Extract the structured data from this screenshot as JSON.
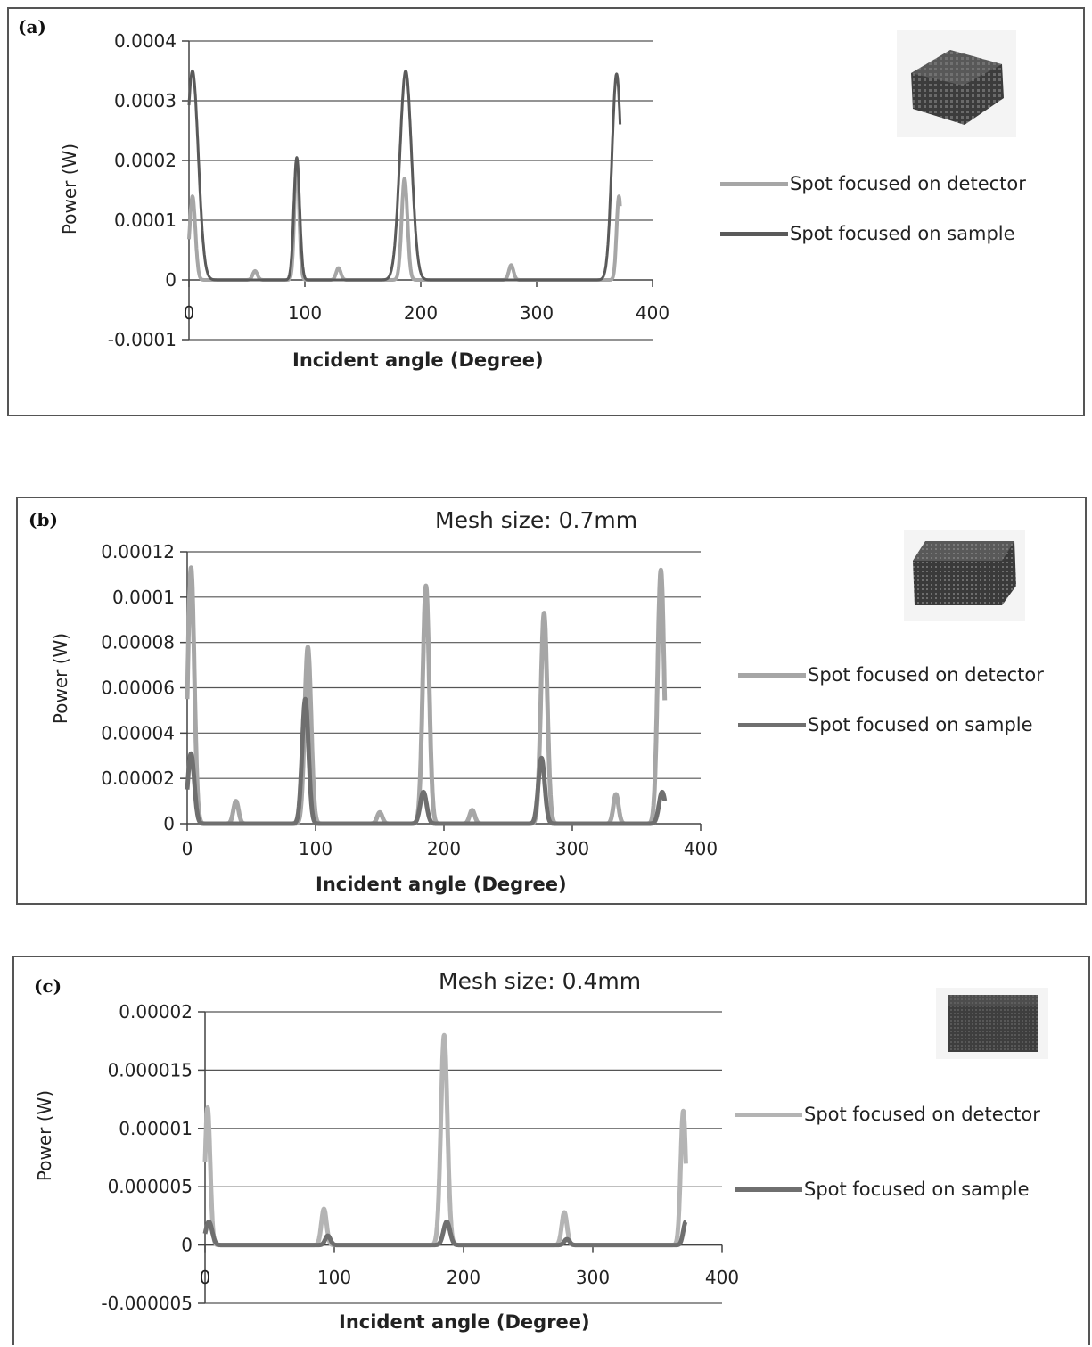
{
  "chart_data": [
    {
      "type": "line",
      "panel_label": "(a)",
      "title": "",
      "xlabel": "Incident angle (Degree)",
      "ylabel": "Power (W)",
      "xlim": [
        0,
        400
      ],
      "ylim": [
        -0.0001,
        0.0004
      ],
      "xticks": [
        "0",
        "100",
        "200",
        "300",
        "400"
      ],
      "yticks": [
        "-0.0001",
        "0",
        "0.0001",
        "0.0002",
        "0.0003",
        "0.0004"
      ],
      "grid": "horizontal",
      "legend_position": "right",
      "series": [
        {
          "name": "Spot focused on detector",
          "color": "#a6a6a6",
          "peaks": [
            {
              "x": 3,
              "y": 0.00014,
              "w": 2.5
            },
            {
              "x": 57,
              "y": 1.5e-05,
              "w": 2
            },
            {
              "x": 93,
              "y": 0.0002,
              "w": 2
            },
            {
              "x": 129,
              "y": 2e-05,
              "w": 2
            },
            {
              "x": 186,
              "y": 0.00017,
              "w": 2.5
            },
            {
              "x": 278,
              "y": 2.5e-05,
              "w": 2
            },
            {
              "x": 371,
              "y": 0.00014,
              "w": 2
            }
          ]
        },
        {
          "name": "Spot focused on sample",
          "color": "#5a5a5a",
          "peaks": [
            {
              "x": 3,
              "y": 0.00035,
              "w": 5
            },
            {
              "x": 93,
              "y": 0.000205,
              "w": 2.5
            },
            {
              "x": 187,
              "y": 0.00035,
              "w": 5
            },
            {
              "x": 369,
              "y": 0.000345,
              "w": 4
            }
          ]
        }
      ]
    },
    {
      "type": "line",
      "panel_label": "(b)",
      "title": "Mesh size: 0.7mm",
      "xlabel": "Incident angle (Degree)",
      "ylabel": "Power (W)",
      "xlim": [
        0,
        400
      ],
      "ylim": [
        0,
        0.00012
      ],
      "xticks": [
        "0",
        "100",
        "200",
        "300",
        "400"
      ],
      "yticks": [
        "0",
        "0.00002",
        "0.00004",
        "0.00006",
        "0.00008",
        "0.0001",
        "0.00012"
      ],
      "grid": "horizontal",
      "legend_position": "right",
      "series": [
        {
          "name": "Spot focused on detector",
          "color": "#a6a6a6",
          "peaks": [
            {
              "x": 3,
              "y": 0.000113,
              "w": 2.5
            },
            {
              "x": 38,
              "y": 1e-05,
              "w": 2
            },
            {
              "x": 94,
              "y": 7.8e-05,
              "w": 2.5
            },
            {
              "x": 150,
              "y": 5e-06,
              "w": 2
            },
            {
              "x": 186,
              "y": 0.000105,
              "w": 2.5
            },
            {
              "x": 222,
              "y": 6e-06,
              "w": 2
            },
            {
              "x": 278,
              "y": 9.3e-05,
              "w": 2.5
            },
            {
              "x": 334,
              "y": 1.3e-05,
              "w": 2
            },
            {
              "x": 369,
              "y": 0.000112,
              "w": 2.5
            }
          ]
        },
        {
          "name": "Spot focused on sample",
          "color": "#6f6f6f",
          "peaks": [
            {
              "x": 3,
              "y": 3.1e-05,
              "w": 2.5
            },
            {
              "x": 92,
              "y": 5.5e-05,
              "w": 2.5
            },
            {
              "x": 184,
              "y": 1.4e-05,
              "w": 2.5
            },
            {
              "x": 276,
              "y": 2.9e-05,
              "w": 2.5
            },
            {
              "x": 370,
              "y": 1.4e-05,
              "w": 2.5
            }
          ]
        }
      ]
    },
    {
      "type": "line",
      "panel_label": "(c)",
      "title": "Mesh size: 0.4mm",
      "xlabel": "Incident angle (Degree)",
      "ylabel": "Power (W)",
      "xlim": [
        0,
        400
      ],
      "ylim": [
        -5e-06,
        2e-05
      ],
      "xticks": [
        "0",
        "100",
        "200",
        "300",
        "400"
      ],
      "yticks": [
        "-0.000005",
        "0",
        "0.000005",
        "0.00001",
        "0.000015",
        "0.00002"
      ],
      "grid": "horizontal",
      "legend_position": "right",
      "series": [
        {
          "name": "Spot focused on detector",
          "color": "#b4b4b4",
          "peaks": [
            {
              "x": 2,
              "y": 1.18e-05,
              "w": 2
            },
            {
              "x": 92,
              "y": 3.1e-06,
              "w": 2
            },
            {
              "x": 185,
              "y": 1.8e-05,
              "w": 2.5
            },
            {
              "x": 278,
              "y": 2.8e-06,
              "w": 2
            },
            {
              "x": 370,
              "y": 1.15e-05,
              "w": 2
            }
          ]
        },
        {
          "name": "Spot focused on sample",
          "color": "#6f6f6f",
          "peaks": [
            {
              "x": 3,
              "y": 2e-06,
              "w": 2.5
            },
            {
              "x": 95,
              "y": 8e-07,
              "w": 2
            },
            {
              "x": 187,
              "y": 2e-06,
              "w": 2.5
            },
            {
              "x": 280,
              "y": 5e-07,
              "w": 2
            },
            {
              "x": 372,
              "y": 2e-06,
              "w": 2
            }
          ]
        }
      ]
    }
  ]
}
